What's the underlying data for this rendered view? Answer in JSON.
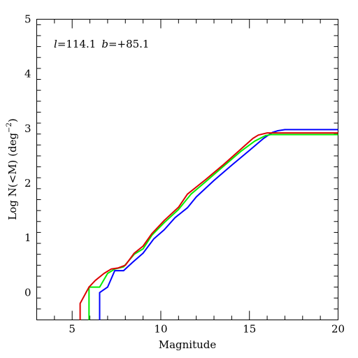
{
  "chart_data": {
    "type": "line",
    "title": "",
    "annotation": {
      "l_symbol": "l",
      "l_value": "=114.1",
      "b_symbol": "b",
      "b_value": "=+85.1"
    },
    "xlabel": "Magnitude",
    "ylabel_prefix": "Log N(<M) (deg",
    "ylabel_sup": "−2",
    "ylabel_suffix": ")",
    "xlim": [
      3,
      20
    ],
    "ylim": [
      -0.5,
      5
    ],
    "x_major_ticks": [
      5,
      10,
      15,
      20
    ],
    "x_tick_labels": [
      "5",
      "10",
      "15",
      "20"
    ],
    "x_minor_step": 1,
    "y_major_ticks": [
      0,
      1,
      2,
      3,
      4,
      5
    ],
    "y_tick_labels": [
      "0",
      "1",
      "2",
      "3",
      "4",
      "5"
    ],
    "y_minor_step": 0.2,
    "grid": false,
    "series": [
      {
        "color": "#0000ff",
        "points": [
          [
            6.55,
            -0.5
          ],
          [
            6.55,
            0.0
          ],
          [
            7.0,
            0.1
          ],
          [
            7.4,
            0.4
          ],
          [
            7.9,
            0.4
          ],
          [
            8.4,
            0.55
          ],
          [
            9.0,
            0.72
          ],
          [
            9.6,
            0.98
          ],
          [
            10.2,
            1.15
          ],
          [
            10.8,
            1.37
          ],
          [
            11.5,
            1.55
          ],
          [
            12.0,
            1.75
          ],
          [
            13.0,
            2.05
          ],
          [
            14.0,
            2.33
          ],
          [
            15.0,
            2.6
          ],
          [
            15.8,
            2.82
          ],
          [
            16.3,
            2.93
          ],
          [
            16.6,
            2.96
          ],
          [
            17.0,
            2.98
          ],
          [
            20.0,
            2.98
          ]
        ]
      },
      {
        "color": "#00ee00",
        "points": [
          [
            5.95,
            -0.5
          ],
          [
            5.95,
            0.1
          ],
          [
            6.55,
            0.1
          ],
          [
            7.0,
            0.35
          ],
          [
            7.4,
            0.43
          ],
          [
            7.9,
            0.47
          ],
          [
            8.5,
            0.7
          ],
          [
            9.0,
            0.8
          ],
          [
            9.5,
            1.05
          ],
          [
            10.2,
            1.28
          ],
          [
            11.0,
            1.52
          ],
          [
            11.7,
            1.8
          ],
          [
            12.5,
            2.02
          ],
          [
            13.5,
            2.3
          ],
          [
            14.5,
            2.58
          ],
          [
            15.3,
            2.77
          ],
          [
            15.9,
            2.87
          ],
          [
            16.2,
            2.89
          ],
          [
            20.0,
            2.89
          ]
        ]
      },
      {
        "color": "#dd0000",
        "points": [
          [
            5.45,
            -0.5
          ],
          [
            5.45,
            -0.2
          ],
          [
            5.95,
            0.1
          ],
          [
            6.3,
            0.22
          ],
          [
            6.8,
            0.35
          ],
          [
            7.2,
            0.43
          ],
          [
            7.6,
            0.45
          ],
          [
            8.0,
            0.5
          ],
          [
            8.5,
            0.72
          ],
          [
            9.0,
            0.85
          ],
          [
            9.5,
            1.08
          ],
          [
            10.2,
            1.32
          ],
          [
            11.0,
            1.56
          ],
          [
            11.5,
            1.8
          ],
          [
            12.5,
            2.06
          ],
          [
            13.5,
            2.33
          ],
          [
            14.5,
            2.62
          ],
          [
            15.2,
            2.82
          ],
          [
            15.5,
            2.88
          ],
          [
            16.0,
            2.92
          ],
          [
            20.0,
            2.92
          ]
        ]
      }
    ]
  }
}
